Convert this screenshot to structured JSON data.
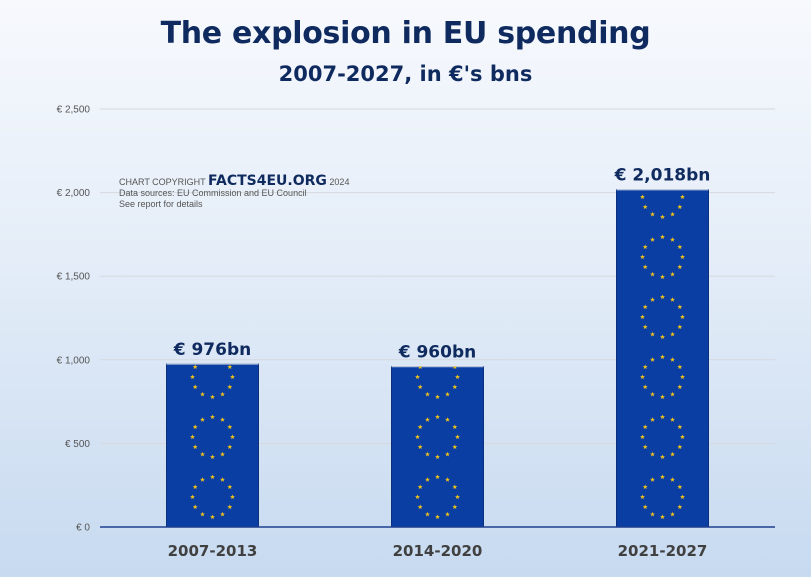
{
  "title": "The explosion in EU spending",
  "subtitle": "2007-2027, in €'s bns",
  "copyright": {
    "prefix": "CHART COPYRIGHT",
    "brand": "FACTS4EU.ORG",
    "year": "2024",
    "sources": "Data sources: EU Commission and EU Council",
    "note": "See report for details"
  },
  "colors": {
    "bar": "#0a3ea3",
    "stars": "#f2c418",
    "title": "#0f2a5e",
    "grid": "#d6d9de"
  },
  "chart_data": {
    "type": "bar",
    "categories": [
      "2007-2013",
      "2014-2020",
      "2021-2027"
    ],
    "values": [
      976,
      960,
      2018
    ],
    "data_labels": [
      "€ 976bn",
      "€ 960bn",
      "€ 2,018bn"
    ],
    "ylim": [
      0,
      2500
    ],
    "yticks": [
      0,
      500,
      1000,
      1500,
      2000,
      2500
    ],
    "ytick_labels": [
      "€ 0",
      "€ 500",
      "€ 1,000",
      "€ 1,500",
      "€ 2,000",
      "€ 2,500"
    ],
    "grid": true,
    "legend": "none",
    "bar_pattern": "eu-flag-star-circles"
  }
}
